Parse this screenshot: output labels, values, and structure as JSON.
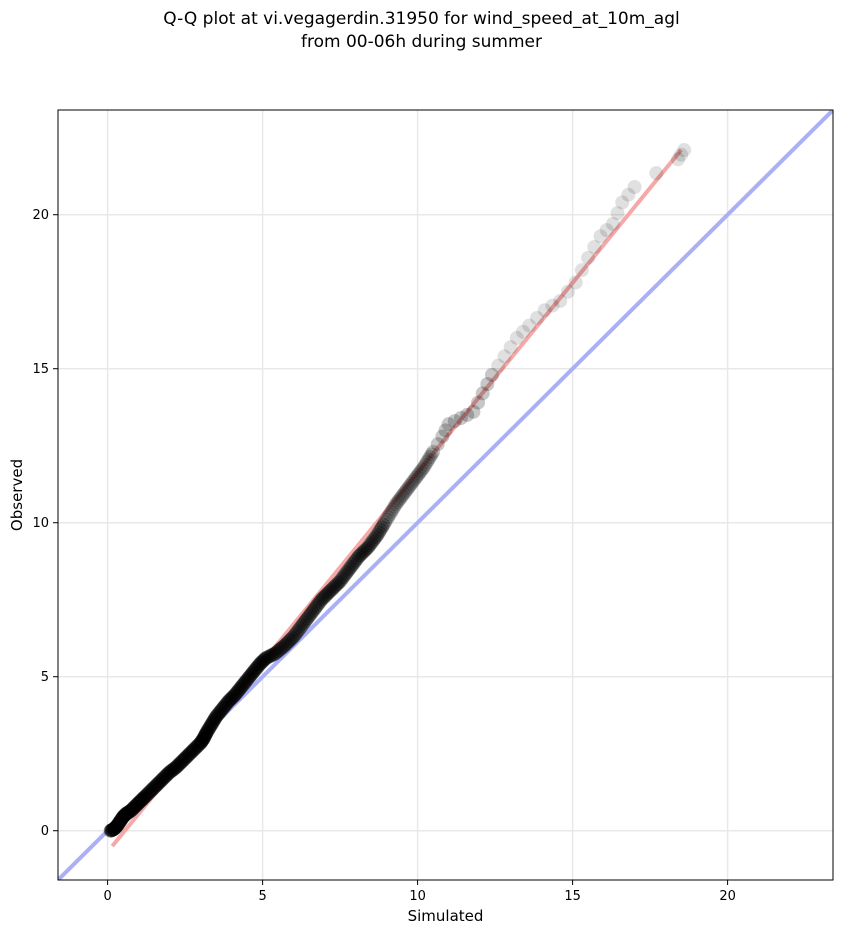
{
  "chart_data": {
    "type": "scatter",
    "title": "Q-Q plot at vi.vegagerdin.31950 for wind_speed_at_10m_agl",
    "subtitle": "from 00-06h during summer",
    "xlabel": "Simulated",
    "ylabel": "Observed",
    "xlim": [
      -1.6,
      23.4
    ],
    "ylim": [
      -1.6,
      23.4
    ],
    "xticks": [
      0,
      5,
      10,
      15,
      20
    ],
    "yticks": [
      0,
      5,
      10,
      15,
      20
    ],
    "grid": true,
    "reference_line": {
      "slope": 1,
      "intercept": 0,
      "color": "#aab0f5"
    },
    "fit_line": {
      "x": [
        0.15,
        18.5
      ],
      "y": [
        -0.5,
        22.1
      ],
      "color": "#f5a8a8"
    },
    "point_color": "#000000",
    "quantiles": [
      [
        0.1,
        0.0
      ],
      [
        0.2,
        0.05
      ],
      [
        0.3,
        0.15
      ],
      [
        0.4,
        0.3
      ],
      [
        0.5,
        0.45
      ],
      [
        0.6,
        0.55
      ],
      [
        0.75,
        0.65
      ],
      [
        0.9,
        0.8
      ],
      [
        1.05,
        0.95
      ],
      [
        1.2,
        1.1
      ],
      [
        1.4,
        1.3
      ],
      [
        1.6,
        1.5
      ],
      [
        1.8,
        1.7
      ],
      [
        2.0,
        1.9
      ],
      [
        2.2,
        2.05
      ],
      [
        2.4,
        2.25
      ],
      [
        2.6,
        2.45
      ],
      [
        2.8,
        2.65
      ],
      [
        3.0,
        2.85
      ],
      [
        3.1,
        3.0
      ],
      [
        3.2,
        3.2
      ],
      [
        3.35,
        3.45
      ],
      [
        3.5,
        3.7
      ],
      [
        3.7,
        3.95
      ],
      [
        3.9,
        4.2
      ],
      [
        4.1,
        4.4
      ],
      [
        4.3,
        4.65
      ],
      [
        4.5,
        4.9
      ],
      [
        4.7,
        5.15
      ],
      [
        4.9,
        5.4
      ],
      [
        5.1,
        5.6
      ],
      [
        5.4,
        5.75
      ],
      [
        5.7,
        6.0
      ],
      [
        6.0,
        6.3
      ],
      [
        6.3,
        6.7
      ],
      [
        6.6,
        7.1
      ],
      [
        6.9,
        7.5
      ],
      [
        7.2,
        7.8
      ],
      [
        7.5,
        8.1
      ],
      [
        7.8,
        8.5
      ],
      [
        8.1,
        8.9
      ],
      [
        8.4,
        9.2
      ],
      [
        8.7,
        9.6
      ],
      [
        9.0,
        10.1
      ],
      [
        9.3,
        10.6
      ],
      [
        9.6,
        11.0
      ],
      [
        9.9,
        11.4
      ],
      [
        10.2,
        11.8
      ],
      [
        10.5,
        12.3
      ],
      [
        10.8,
        12.8
      ],
      [
        11.0,
        13.2
      ],
      [
        11.4,
        13.4
      ],
      [
        11.8,
        13.6
      ],
      [
        12.1,
        14.2
      ],
      [
        12.4,
        14.8
      ],
      [
        12.8,
        15.4
      ],
      [
        13.2,
        16.0
      ],
      [
        13.6,
        16.4
      ],
      [
        14.1,
        16.9
      ],
      [
        14.6,
        17.2
      ],
      [
        15.1,
        17.8
      ],
      [
        15.5,
        18.6
      ],
      [
        15.9,
        19.3
      ],
      [
        16.3,
        19.7
      ],
      [
        16.6,
        20.4
      ],
      [
        17.0,
        20.9
      ],
      [
        18.4,
        21.8
      ],
      [
        18.6,
        22.1
      ]
    ]
  }
}
